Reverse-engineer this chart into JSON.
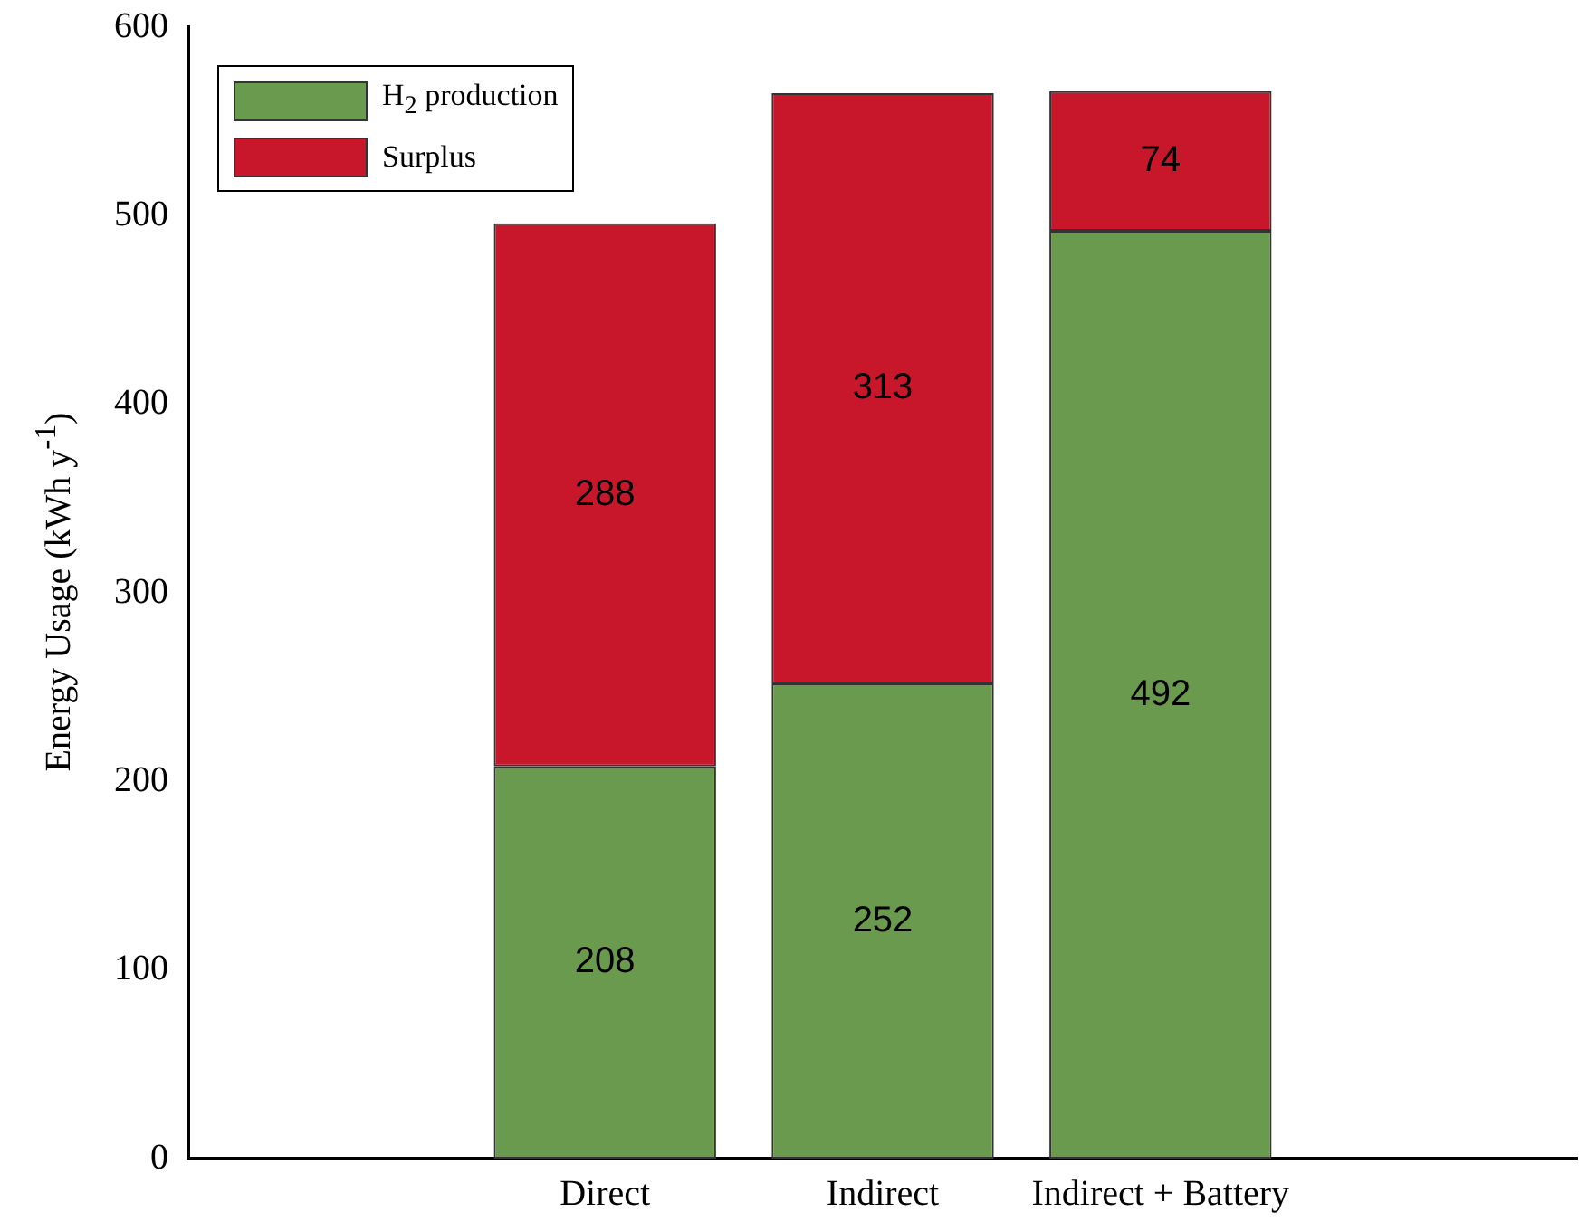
{
  "chart_data": {
    "type": "bar",
    "ylabel": "Energy Usage (kWh y$^{-1}$)",
    "categories": [
      null,
      "Direct",
      "Indirect",
      "Indirect + Battery",
      null
    ],
    "stacked": true,
    "series": [
      {
        "name": "H$_{2}$ production",
        "color": "#6a9a4e",
        "values": [
          null,
          208,
          252,
          492,
          null
        ]
      },
      {
        "name": "Surplus",
        "color": "#c8172b",
        "values": [
          null,
          288,
          313,
          74,
          null
        ]
      }
    ],
    "ylim": [
      0,
      600
    ],
    "yticks": [
      0,
      100,
      200,
      300,
      400,
      500,
      600
    ],
    "grid": false,
    "legend": "top left",
    "data_labels": true
  }
}
